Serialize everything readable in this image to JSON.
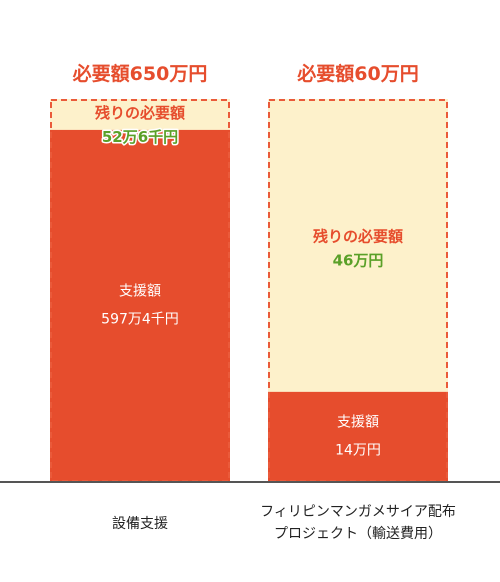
{
  "chart_data": {
    "type": "bar",
    "stacked": true,
    "unit": "万円",
    "categories": [
      [
        "設備支援"
      ],
      [
        "フィリピンマンガメサイア配布",
        "プロジェクト（輸送費用）"
      ]
    ],
    "series": [
      {
        "name": "支援額",
        "values": [
          597.4,
          14
        ]
      },
      {
        "name": "残りの必要額",
        "values": [
          52.6,
          46
        ]
      }
    ],
    "totals": [
      650,
      60
    ],
    "target_labels": [
      "必要額650万円",
      "必要額60万円"
    ],
    "support_labels": [
      {
        "title": "支援額",
        "value": "597万4千円"
      },
      {
        "title": "支援額",
        "value": "14万円"
      }
    ],
    "remaining_labels": [
      {
        "title": "残りの必要額",
        "value": "52万6千円"
      },
      {
        "title": "残りの必要額",
        "value": "46万円"
      }
    ],
    "colors": {
      "support": "#e64d2d",
      "remaining": "#fdf1cb",
      "target_border": "#ea5a3a",
      "target_text": "#e64d2d",
      "remaining_value": "#5aa028",
      "support_text": "#ffffff",
      "axis": "#555555",
      "category_text": "#222222"
    }
  }
}
